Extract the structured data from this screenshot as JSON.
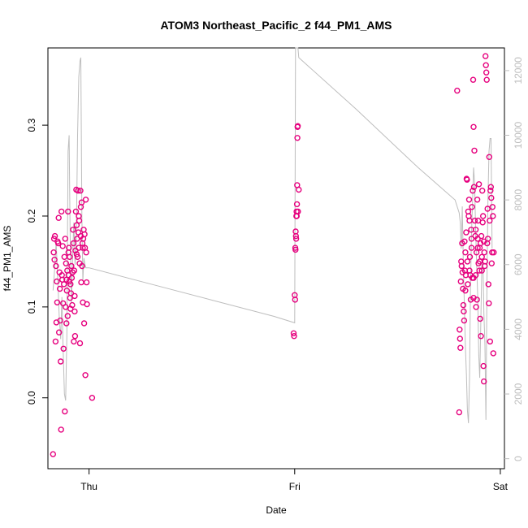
{
  "chart_data": {
    "type": "scatter",
    "title": "ATOM3 Northeast_Pacific_2 f44_PM1_AMS",
    "xlabel": "Date",
    "ylabel": "f44_PM1_AMS",
    "x_ticks": [
      "Thu",
      "Fri",
      "Sat"
    ],
    "xlim": [
      -0.2,
      2.02
    ],
    "ylim": [
      -0.078,
      0.385
    ],
    "y_ticks": [
      "0.0",
      "0.1",
      "0.2",
      "0.3"
    ],
    "y2_ticks": [
      "0",
      "2000",
      "4000",
      "6000",
      "8000",
      "10000",
      "12000"
    ],
    "y2lim": [
      -310,
      12700
    ],
    "colors": {
      "points": "#e6007e",
      "altitude_line": "#bdbdbd"
    },
    "series": [
      {
        "type": "scatter",
        "points": [
          [
            -0.175,
            -0.062
          ],
          [
            -0.172,
            0.16
          ],
          [
            -0.17,
            0.175
          ],
          [
            -0.168,
            0.152
          ],
          [
            -0.166,
            0.178
          ],
          [
            -0.163,
            0.062
          ],
          [
            -0.161,
            0.145
          ],
          [
            -0.159,
            0.083
          ],
          [
            -0.157,
            0.128
          ],
          [
            -0.155,
            0.105
          ],
          [
            -0.153,
            0.172
          ],
          [
            -0.15,
            0.17
          ],
          [
            -0.148,
            0.198
          ],
          [
            -0.146,
            0.072
          ],
          [
            -0.144,
            0.138
          ],
          [
            -0.142,
            0.12
          ],
          [
            -0.14,
            0.085
          ],
          [
            -0.138,
            0.04
          ],
          [
            -0.136,
            -0.035
          ],
          [
            -0.134,
            0.205
          ],
          [
            -0.132,
            0.135
          ],
          [
            -0.13,
            0.13
          ],
          [
            -0.128,
            0.167
          ],
          [
            -0.126,
            0.104
          ],
          [
            -0.124,
            0.054
          ],
          [
            -0.122,
            0.125
          ],
          [
            -0.12,
            0.155
          ],
          [
            -0.118,
            -0.015
          ],
          [
            -0.116,
            0.175
          ],
          [
            -0.114,
            0.1
          ],
          [
            -0.112,
            0.148
          ],
          [
            -0.11,
            0.082
          ],
          [
            -0.108,
            0.118
          ],
          [
            -0.106,
            0.14
          ],
          [
            -0.104,
            0.09
          ],
          [
            -0.102,
            0.205
          ],
          [
            -0.1,
            0.135
          ],
          [
            -0.098,
            0.165
          ],
          [
            -0.096,
            0.128
          ],
          [
            -0.094,
            0.155
          ],
          [
            -0.092,
            0.11
          ],
          [
            -0.09,
            0.125
          ],
          [
            -0.088,
            0.115
          ],
          [
            -0.086,
            0.145
          ],
          [
            -0.084,
            0.132
          ],
          [
            -0.082,
            0.102
          ],
          [
            -0.08,
            0.138
          ],
          [
            -0.078,
            0.185
          ],
          [
            -0.076,
            0.17
          ],
          [
            -0.074,
            0.062
          ],
          [
            -0.072,
            0.14
          ],
          [
            -0.07,
            0.095
          ],
          [
            -0.068,
            0.068
          ],
          [
            -0.066,
            0.162
          ],
          [
            -0.064,
            0.205
          ],
          [
            -0.062,
            0.229
          ],
          [
            -0.06,
            0.19
          ],
          [
            -0.058,
            0.175
          ],
          [
            -0.056,
            0.155
          ],
          [
            -0.054,
            0.228
          ],
          [
            -0.052,
            0.182
          ],
          [
            -0.05,
            0.165
          ],
          [
            -0.048,
            0.195
          ],
          [
            -0.046,
            0.148
          ],
          [
            -0.044,
            0.06
          ],
          [
            -0.042,
            0.228
          ],
          [
            -0.04,
            0.21
          ],
          [
            -0.038,
            0.127
          ],
          [
            -0.036,
            0.215
          ],
          [
            -0.034,
            0.145
          ],
          [
            -0.032,
            0.17
          ],
          [
            -0.03,
            0.105
          ],
          [
            -0.028,
            0.175
          ],
          [
            -0.026,
            0.185
          ],
          [
            -0.024,
            0.082
          ],
          [
            -0.022,
            0.18
          ],
          [
            -0.02,
            0.165
          ],
          [
            -0.018,
            0.025
          ],
          [
            -0.016,
            0.218
          ],
          [
            -0.014,
            0.16
          ],
          [
            -0.012,
            0.127
          ],
          [
            -0.01,
            0.103
          ],
          [
            -0.06,
            0.158
          ],
          [
            -0.07,
            0.112
          ],
          [
            -0.09,
            0.098
          ],
          [
            -0.1,
            0.16
          ],
          [
            -0.11,
            0.13
          ],
          [
            -0.05,
            0.2
          ],
          [
            -0.04,
            0.178
          ],
          [
            -0.03,
            0.165
          ],
          [
            0.015,
            0.0
          ],
          [
            0.995,
            0.071
          ],
          [
            0.997,
            0.068
          ],
          [
            1.0,
            0.113
          ],
          [
            1.002,
            0.108
          ],
          [
            1.003,
            0.165
          ],
          [
            1.004,
            0.163
          ],
          [
            1.005,
            0.183
          ],
          [
            1.006,
            0.178
          ],
          [
            1.007,
            0.175
          ],
          [
            1.008,
            0.2
          ],
          [
            1.009,
            0.205
          ],
          [
            1.01,
            0.2
          ],
          [
            1.011,
            0.213
          ],
          [
            1.012,
            0.234
          ],
          [
            1.013,
            0.286
          ],
          [
            1.014,
            0.298
          ],
          [
            1.015,
            0.299
          ],
          [
            1.016,
            0.205
          ],
          [
            1.02,
            0.229
          ],
          [
            1.79,
            0.338
          ],
          [
            1.8,
            -0.016
          ],
          [
            1.802,
            0.075
          ],
          [
            1.804,
            0.065
          ],
          [
            1.806,
            0.055
          ],
          [
            1.808,
            0.128
          ],
          [
            1.81,
            0.15
          ],
          [
            1.812,
            0.145
          ],
          [
            1.814,
            0.17
          ],
          [
            1.816,
            0.138
          ],
          [
            1.818,
            0.12
          ],
          [
            1.82,
            0.102
          ],
          [
            1.822,
            0.095
          ],
          [
            1.824,
            0.085
          ],
          [
            1.826,
            0.172
          ],
          [
            1.828,
            0.14
          ],
          [
            1.83,
            0.118
          ],
          [
            1.832,
            0.135
          ],
          [
            1.834,
            0.182
          ],
          [
            1.836,
            0.241
          ],
          [
            1.838,
            0.24
          ],
          [
            1.84,
            0.15
          ],
          [
            1.842,
            0.125
          ],
          [
            1.844,
            0.205
          ],
          [
            1.846,
            0.2
          ],
          [
            1.848,
            0.218
          ],
          [
            1.85,
            0.195
          ],
          [
            1.852,
            0.155
          ],
          [
            1.854,
            0.135
          ],
          [
            1.856,
            0.108
          ],
          [
            1.858,
            0.185
          ],
          [
            1.86,
            0.175
          ],
          [
            1.862,
            0.21
          ],
          [
            1.864,
            0.132
          ],
          [
            1.866,
            0.228
          ],
          [
            1.868,
            0.35
          ],
          [
            1.87,
            0.298
          ],
          [
            1.872,
            0.232
          ],
          [
            1.874,
            0.272
          ],
          [
            1.876,
            0.195
          ],
          [
            1.878,
            0.178
          ],
          [
            1.88,
            0.135
          ],
          [
            1.882,
            0.1
          ],
          [
            1.884,
            0.16
          ],
          [
            1.886,
            0.108
          ],
          [
            1.888,
            0.218
          ],
          [
            1.89,
            0.175
          ],
          [
            1.892,
            0.195
          ],
          [
            1.894,
            0.148
          ],
          [
            1.896,
            0.235
          ],
          [
            1.898,
            0.14
          ],
          [
            1.9,
            0.165
          ],
          [
            1.902,
            0.087
          ],
          [
            1.904,
            0.17
          ],
          [
            1.906,
            0.068
          ],
          [
            1.908,
            0.178
          ],
          [
            1.91,
            0.155
          ],
          [
            1.912,
            0.228
          ],
          [
            1.914,
            0.193
          ],
          [
            1.916,
            0.2
          ],
          [
            1.918,
            0.035
          ],
          [
            1.92,
            0.018
          ],
          [
            1.922,
            0.16
          ],
          [
            1.924,
            0.145
          ],
          [
            1.926,
            0.15
          ],
          [
            1.928,
            0.376
          ],
          [
            1.93,
            0.366
          ],
          [
            1.932,
            0.358
          ],
          [
            1.934,
            0.35
          ],
          [
            1.936,
            0.17
          ],
          [
            1.938,
            0.208
          ],
          [
            1.94,
            0.175
          ],
          [
            1.942,
            0.125
          ],
          [
            1.944,
            0.104
          ],
          [
            1.946,
            0.265
          ],
          [
            1.948,
            0.195
          ],
          [
            1.95,
            0.062
          ],
          [
            1.952,
            0.228
          ],
          [
            1.954,
            0.232
          ],
          [
            1.956,
            0.22
          ],
          [
            1.958,
            0.148
          ],
          [
            1.96,
            0.16
          ],
          [
            1.962,
            0.21
          ],
          [
            1.964,
            0.2
          ],
          [
            1.966,
            0.049
          ],
          [
            1.968,
            0.16
          ],
          [
            1.87,
            0.11
          ],
          [
            1.86,
            0.165
          ],
          [
            1.88,
            0.185
          ],
          [
            1.89,
            0.165
          ],
          [
            1.9,
            0.15
          ],
          [
            1.91,
            0.14
          ],
          [
            1.92,
            0.172
          ],
          [
            1.83,
            0.16
          ],
          [
            1.85,
            0.14
          ],
          [
            1.87,
            0.132
          ]
        ]
      },
      {
        "type": "line",
        "axis": "right",
        "points": [
          [
            -0.175,
            5200
          ],
          [
            -0.168,
            5800
          ],
          [
            -0.16,
            6700
          ],
          [
            -0.152,
            5500
          ],
          [
            -0.145,
            4400
          ],
          [
            -0.138,
            3700
          ],
          [
            -0.132,
            5000
          ],
          [
            -0.126,
            3400
          ],
          [
            -0.12,
            2000
          ],
          [
            -0.114,
            1800
          ],
          [
            -0.108,
            3800
          ],
          [
            -0.102,
            9500
          ],
          [
            -0.097,
            10000
          ],
          [
            -0.092,
            7000
          ],
          [
            -0.086,
            4800
          ],
          [
            -0.08,
            6200
          ],
          [
            -0.074,
            7300
          ],
          [
            -0.068,
            6000
          ],
          [
            -0.062,
            6700
          ],
          [
            -0.056,
            10000
          ],
          [
            -0.05,
            11800
          ],
          [
            -0.044,
            12300
          ],
          [
            -0.04,
            12400
          ],
          [
            -0.035,
            7500
          ],
          [
            -0.03,
            5500
          ],
          [
            -0.025,
            6200
          ],
          [
            -0.02,
            6000
          ],
          [
            -0.015,
            5900
          ],
          [
            0.0,
            5900
          ],
          [
            0.3,
            5400
          ],
          [
            0.6,
            4900
          ],
          [
            0.9,
            4400
          ],
          [
            1.0,
            4200
          ],
          [
            1.004,
            12700
          ],
          [
            1.016,
            12700
          ],
          [
            1.02,
            12400
          ],
          [
            1.3,
            10800
          ],
          [
            1.6,
            9000
          ],
          [
            1.78,
            8000
          ],
          [
            1.8,
            7600
          ],
          [
            1.805,
            7300
          ],
          [
            1.81,
            6500
          ],
          [
            1.815,
            7800
          ],
          [
            1.82,
            6000
          ],
          [
            1.825,
            4800
          ],
          [
            1.83,
            3500
          ],
          [
            1.835,
            2600
          ],
          [
            1.84,
            1500
          ],
          [
            1.845,
            1100
          ],
          [
            1.85,
            2500
          ],
          [
            1.855,
            5300
          ],
          [
            1.86,
            7000
          ],
          [
            1.865,
            8000
          ],
          [
            1.87,
            9000
          ],
          [
            1.875,
            8500
          ],
          [
            1.88,
            7000
          ],
          [
            1.885,
            6000
          ],
          [
            1.89,
            5000
          ],
          [
            1.895,
            3200
          ],
          [
            1.9,
            2500
          ],
          [
            1.905,
            4200
          ],
          [
            1.91,
            6000
          ],
          [
            1.915,
            6200
          ],
          [
            1.92,
            4500
          ],
          [
            1.925,
            3500
          ],
          [
            1.93,
            1200
          ],
          [
            1.935,
            5500
          ],
          [
            1.94,
            8000
          ],
          [
            1.945,
            9500
          ],
          [
            1.95,
            9900
          ],
          [
            1.955,
            9900
          ],
          [
            1.96,
            6500
          ]
        ]
      }
    ]
  }
}
